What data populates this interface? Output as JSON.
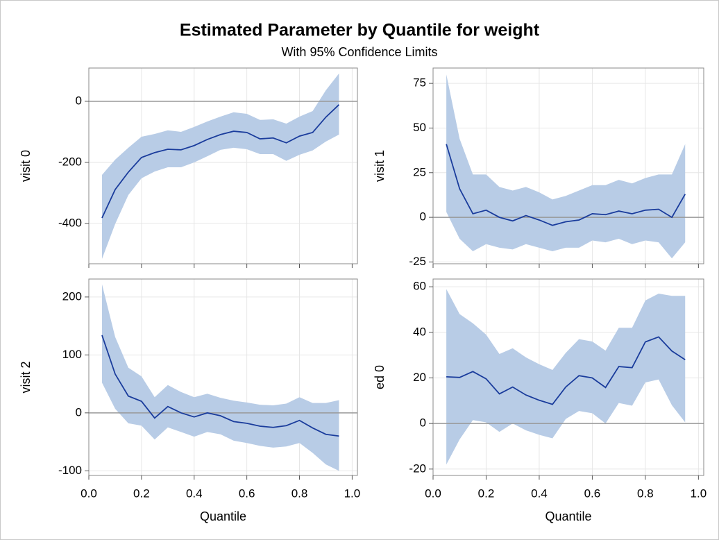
{
  "title": "Estimated Parameter by Quantile for weight",
  "subtitle": "With 95% Confidence Limits",
  "chart_data": [
    {
      "type": "band-line",
      "ylabel": "visit 0",
      "x": [
        0.05,
        0.1,
        0.15,
        0.2,
        0.25,
        0.3,
        0.35,
        0.4,
        0.45,
        0.5,
        0.55,
        0.6,
        0.65,
        0.7,
        0.75,
        0.8,
        0.85,
        0.9,
        0.95
      ],
      "values": [
        -382,
        -289,
        -232,
        -184,
        -168,
        -157,
        -159,
        -145,
        -125,
        -109,
        -98,
        -102,
        -123,
        -120,
        -136,
        -114,
        -102,
        -52,
        -11
      ],
      "lower": [
        -516,
        -402,
        -307,
        -252,
        -230,
        -216,
        -216,
        -200,
        -180,
        -159,
        -152,
        -157,
        -173,
        -173,
        -195,
        -175,
        -161,
        -132,
        -109
      ],
      "upper": [
        -241,
        -191,
        -152,
        -116,
        -107,
        -95,
        -100,
        -84,
        -66,
        -50,
        -36,
        -41,
        -61,
        -59,
        -73,
        -50,
        -32,
        36,
        91
      ],
      "color": "#1a3c9c",
      "band_color": "#b8cce6",
      "reference_line": 0,
      "xlim": [
        0,
        1.02
      ],
      "xticks": [
        0,
        0.2,
        0.4,
        0.6,
        0.8,
        1
      ],
      "ylim": [
        -532,
        109
      ],
      "yticks": [
        -400,
        -200,
        0
      ],
      "grid": true
    },
    {
      "type": "band-line",
      "ylabel": "visit 1",
      "x": [
        0.05,
        0.1,
        0.15,
        0.2,
        0.25,
        0.3,
        0.35,
        0.4,
        0.45,
        0.5,
        0.55,
        0.6,
        0.65,
        0.7,
        0.75,
        0.8,
        0.85,
        0.9,
        0.95
      ],
      "values": [
        41,
        16,
        2,
        4,
        0,
        -2,
        1,
        -1.5,
        -4.5,
        -2.5,
        -1.5,
        2,
        1.5,
        3.5,
        2,
        4,
        4.5,
        0,
        13
      ],
      "lower": [
        3,
        -12,
        -19,
        -15,
        -17,
        -18,
        -15,
        -17,
        -19,
        -17,
        -17,
        -13,
        -14,
        -12,
        -15,
        -13,
        -14,
        -23,
        -14
      ],
      "upper": [
        80,
        44,
        24,
        24,
        17,
        15,
        17,
        14,
        10,
        12,
        15,
        18,
        18,
        21,
        19,
        22,
        24,
        24,
        41
      ],
      "color": "#1a3c9c",
      "band_color": "#b8cce6",
      "reference_line": 0,
      "xlim": [
        0,
        1.02
      ],
      "xticks": [
        0,
        0.2,
        0.4,
        0.6,
        0.8,
        1
      ],
      "ylim": [
        -26,
        83.6
      ],
      "yticks": [
        -25,
        0,
        25,
        50,
        75
      ],
      "grid": true
    },
    {
      "type": "band-line",
      "ylabel": "visit 2",
      "xlabel": "Quantile",
      "x": [
        0.05,
        0.1,
        0.15,
        0.2,
        0.25,
        0.3,
        0.35,
        0.4,
        0.45,
        0.5,
        0.55,
        0.6,
        0.65,
        0.7,
        0.75,
        0.8,
        0.85,
        0.9,
        0.95
      ],
      "values": [
        134,
        67,
        29,
        20,
        -9,
        11,
        0,
        -7,
        0,
        -5,
        -15,
        -18,
        -23,
        -25,
        -22,
        -13,
        -26,
        -37,
        -40
      ],
      "lower": [
        52,
        7,
        -18,
        -22,
        -46,
        -25,
        -33,
        -41,
        -33,
        -37,
        -48,
        -52,
        -57,
        -60,
        -58,
        -52,
        -69,
        -89,
        -100
      ],
      "upper": [
        222,
        131,
        78,
        63,
        27,
        48,
        36,
        27,
        33,
        26,
        21,
        18,
        14,
        13,
        16,
        27,
        17,
        17,
        22
      ],
      "color": "#1a3c9c",
      "band_color": "#b8cce6",
      "reference_line": 0,
      "xlim": [
        0,
        1.02
      ],
      "xticks": [
        {
          "value": 0,
          "label": "0.0"
        },
        0.2,
        0.4,
        0.6,
        0.8,
        {
          "value": 1,
          "label": "1.0"
        }
      ],
      "ylim": [
        -108,
        231
      ],
      "yticks": [
        -100,
        0,
        100,
        200
      ],
      "grid": true
    },
    {
      "type": "band-line",
      "ylabel": "ed 0",
      "xlabel": "Quantile",
      "x": [
        0.05,
        0.1,
        0.15,
        0.2,
        0.25,
        0.3,
        0.35,
        0.4,
        0.45,
        0.5,
        0.55,
        0.6,
        0.65,
        0.7,
        0.75,
        0.8,
        0.85,
        0.9,
        0.95
      ],
      "values": [
        20.5,
        20.2,
        22.8,
        19.6,
        13,
        16,
        12.5,
        10.2,
        8.4,
        16,
        21,
        20,
        15.8,
        25,
        24.5,
        35.8,
        38,
        31.8,
        28
      ],
      "lower": [
        -18,
        -7,
        1.5,
        0.5,
        -3.7,
        0,
        -3,
        -5,
        -6.5,
        2,
        5.5,
        4.5,
        0,
        9,
        7.8,
        18,
        19.3,
        8,
        0.5
      ],
      "upper": [
        59,
        48,
        44,
        39,
        30.5,
        33,
        29,
        26,
        23.5,
        31,
        37,
        36,
        32,
        42,
        42,
        54,
        57,
        56,
        56
      ],
      "color": "#1a3c9c",
      "band_color": "#b8cce6",
      "reference_line": 0,
      "xlim": [
        0,
        1.02
      ],
      "xticks": [
        {
          "value": 0,
          "label": "0.0"
        },
        0.2,
        0.4,
        0.6,
        0.8,
        {
          "value": 1,
          "label": "1.0"
        }
      ],
      "ylim": [
        -22.8,
        63.4
      ],
      "yticks": [
        -20,
        0,
        20,
        40,
        60
      ],
      "grid": true
    }
  ]
}
